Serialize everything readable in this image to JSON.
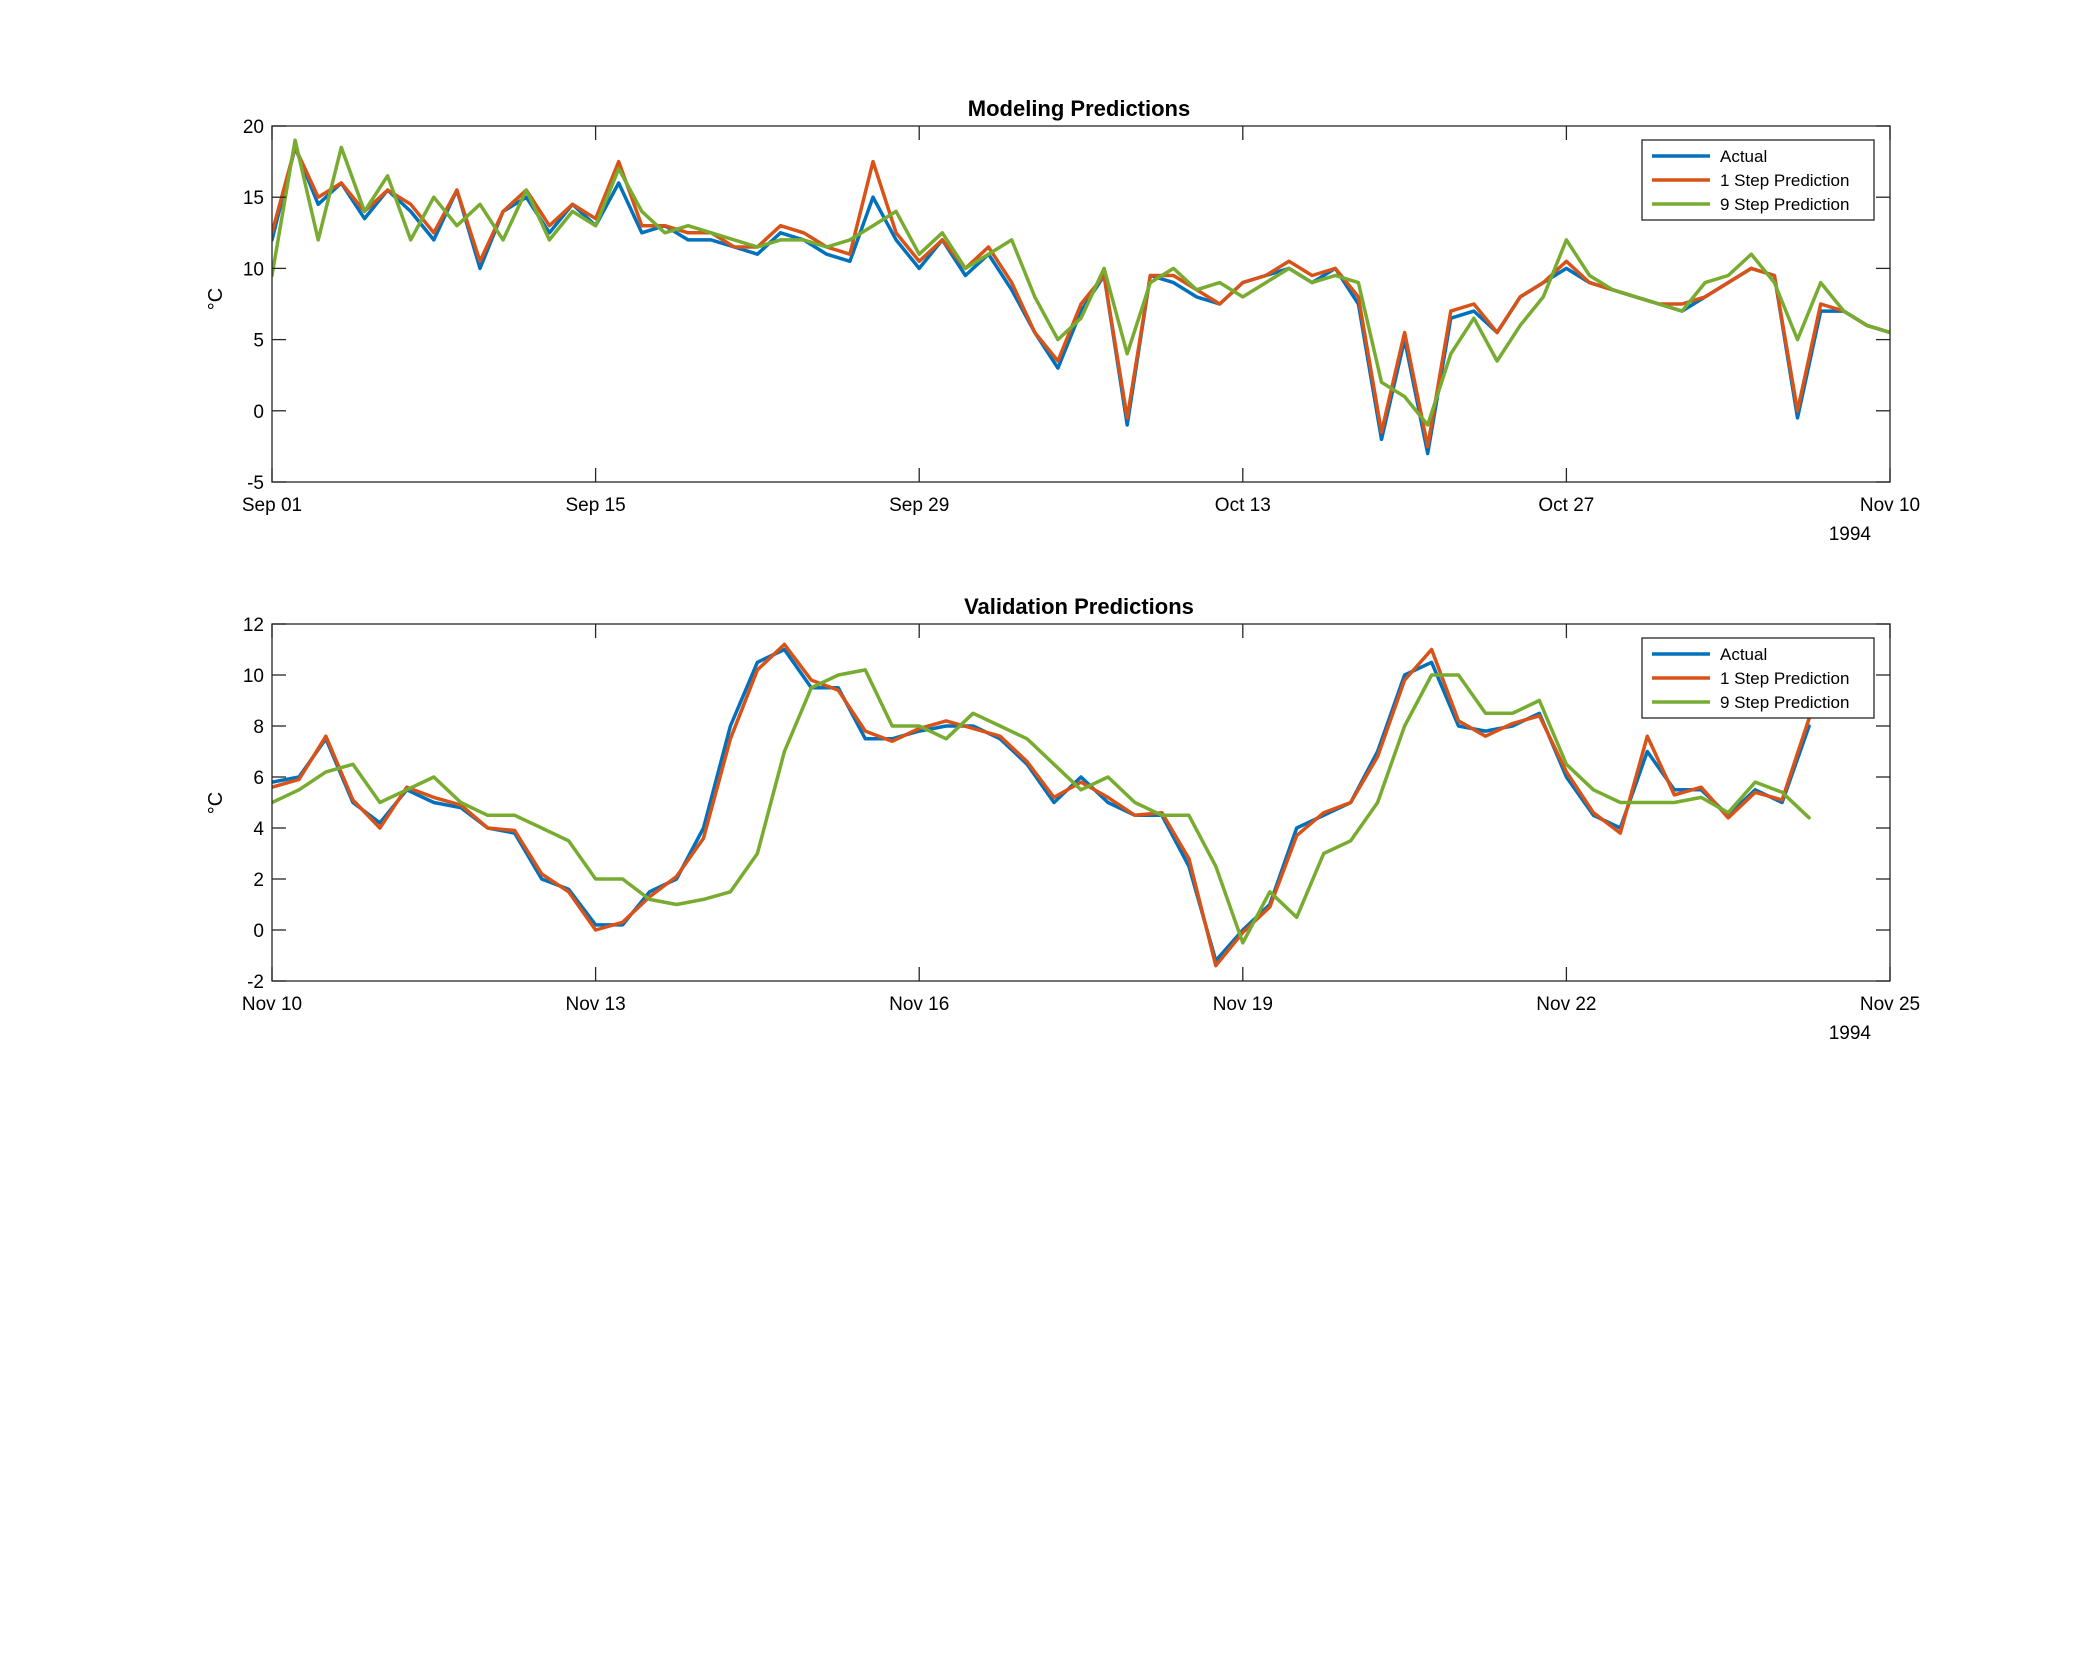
{
  "figure": {
    "colors": {
      "actual": "#0072BD",
      "one_step": "#D95319",
      "nine_step": "#77AC30"
    }
  },
  "chart_data": [
    {
      "type": "line",
      "title": "Modeling Predictions",
      "ylabel": "°C",
      "xlabel": "",
      "year_label": "1994",
      "xlim": [
        "1994-09-01",
        "1994-11-10"
      ],
      "ylim": [
        -5,
        20
      ],
      "x_ticks": [
        "Sep 01",
        "Sep 15",
        "Sep 29",
        "Oct 13",
        "Oct 27",
        "Nov 10"
      ],
      "y_ticks": [
        "-5",
        "0",
        "5",
        "10",
        "15",
        "20"
      ],
      "grid": false,
      "legend": {
        "position": "top-right",
        "entries": [
          "Actual",
          "1 Step Prediction",
          "9 Step Prediction"
        ]
      },
      "series": [
        {
          "name": "Actual",
          "x": [
            "1994-09-01",
            "1994-09-02",
            "1994-09-03",
            "1994-09-04",
            "1994-09-05",
            "1994-09-06",
            "1994-09-07",
            "1994-09-08",
            "1994-09-09",
            "1994-09-10",
            "1994-09-11",
            "1994-09-12",
            "1994-09-13",
            "1994-09-14",
            "1994-09-15",
            "1994-09-16",
            "1994-09-17",
            "1994-09-18",
            "1994-09-19",
            "1994-09-20",
            "1994-09-21",
            "1994-09-22",
            "1994-09-23",
            "1994-09-24",
            "1994-09-25",
            "1994-09-26",
            "1994-09-27",
            "1994-09-28",
            "1994-09-29",
            "1994-09-30",
            "1994-10-01",
            "1994-10-02",
            "1994-10-03",
            "1994-10-04",
            "1994-10-05",
            "1994-10-06",
            "1994-10-07",
            "1994-10-08",
            "1994-10-09",
            "1994-10-10",
            "1994-10-11",
            "1994-10-12",
            "1994-10-13",
            "1994-10-14",
            "1994-10-15",
            "1994-10-16",
            "1994-10-17",
            "1994-10-18",
            "1994-10-19",
            "1994-10-20",
            "1994-10-21",
            "1994-10-22",
            "1994-10-23",
            "1994-10-24",
            "1994-10-25",
            "1994-10-26",
            "1994-10-27",
            "1994-10-28",
            "1994-10-29",
            "1994-10-30",
            "1994-10-31",
            "1994-11-01",
            "1994-11-02",
            "1994-11-03",
            "1994-11-04",
            "1994-11-05",
            "1994-11-06",
            "1994-11-07",
            "1994-11-08",
            "1994-11-09",
            "1994-11-10"
          ],
          "values": [
            12,
            18.5,
            14.5,
            16,
            13.5,
            15.5,
            14,
            12,
            15.5,
            10,
            14,
            15,
            12.5,
            14.5,
            13,
            16,
            12.5,
            13,
            12,
            12,
            11.5,
            11,
            12.5,
            12,
            11,
            10.5,
            15,
            12,
            10,
            12,
            9.5,
            11,
            8.5,
            5.5,
            3,
            7,
            9.5,
            -1,
            9.5,
            9,
            8,
            7.5,
            9,
            9.5,
            10,
            9,
            10,
            7.5,
            -2,
            5,
            -3,
            6.5,
            7,
            5.5,
            8,
            9,
            10,
            9,
            8.5,
            8,
            7.5,
            7,
            8,
            9,
            10,
            9.5,
            -0.5,
            7,
            7,
            6,
            5.5
          ]
        },
        {
          "name": "1 Step Prediction",
          "x": [
            "1994-09-01",
            "1994-09-02",
            "1994-09-03",
            "1994-09-04",
            "1994-09-05",
            "1994-09-06",
            "1994-09-07",
            "1994-09-08",
            "1994-09-09",
            "1994-09-10",
            "1994-09-11",
            "1994-09-12",
            "1994-09-13",
            "1994-09-14",
            "1994-09-15",
            "1994-09-16",
            "1994-09-17",
            "1994-09-18",
            "1994-09-19",
            "1994-09-20",
            "1994-09-21",
            "1994-09-22",
            "1994-09-23",
            "1994-09-24",
            "1994-09-25",
            "1994-09-26",
            "1994-09-27",
            "1994-09-28",
            "1994-09-29",
            "1994-09-30",
            "1994-10-01",
            "1994-10-02",
            "1994-10-03",
            "1994-10-04",
            "1994-10-05",
            "1994-10-06",
            "1994-10-07",
            "1994-10-08",
            "1994-10-09",
            "1994-10-10",
            "1994-10-11",
            "1994-10-12",
            "1994-10-13",
            "1994-10-14",
            "1994-10-15",
            "1994-10-16",
            "1994-10-17",
            "1994-10-18",
            "1994-10-19",
            "1994-10-20",
            "1994-10-21",
            "1994-10-22",
            "1994-10-23",
            "1994-10-24",
            "1994-10-25",
            "1994-10-26",
            "1994-10-27",
            "1994-10-28",
            "1994-10-29",
            "1994-10-30",
            "1994-10-31",
            "1994-11-01",
            "1994-11-02",
            "1994-11-03",
            "1994-11-04",
            "1994-11-05",
            "1994-11-06",
            "1994-11-07",
            "1994-11-08",
            "1994-11-09",
            "1994-11-10"
          ],
          "values": [
            12.5,
            18.5,
            15,
            16,
            14,
            15.5,
            14.5,
            12.5,
            15.5,
            10.5,
            14,
            15.5,
            13,
            14.5,
            13.5,
            17.5,
            13,
            13,
            12.5,
            12.5,
            11.5,
            11.5,
            13,
            12.5,
            11.5,
            11,
            17.5,
            12.5,
            10.5,
            12,
            10,
            11.5,
            9,
            5.5,
            3.5,
            7.5,
            9.5,
            -0.5,
            9.5,
            9.5,
            8.5,
            7.5,
            9,
            9.5,
            10.5,
            9.5,
            10,
            8,
            -1.5,
            5.5,
            -2.5,
            7,
            7.5,
            5.5,
            8,
            9,
            10.5,
            9,
            8.5,
            8,
            7.5,
            7.5,
            8,
            9,
            10,
            9.5,
            0,
            7.5,
            7,
            6,
            5.5
          ]
        },
        {
          "name": "9 Step Prediction",
          "x": [
            "1994-09-01",
            "1994-09-02",
            "1994-09-03",
            "1994-09-04",
            "1994-09-05",
            "1994-09-06",
            "1994-09-07",
            "1994-09-08",
            "1994-09-09",
            "1994-09-10",
            "1994-09-11",
            "1994-09-12",
            "1994-09-13",
            "1994-09-14",
            "1994-09-15",
            "1994-09-16",
            "1994-09-17",
            "1994-09-18",
            "1994-09-19",
            "1994-09-20",
            "1994-09-21",
            "1994-09-22",
            "1994-09-23",
            "1994-09-24",
            "1994-09-25",
            "1994-09-26",
            "1994-09-27",
            "1994-09-28",
            "1994-09-29",
            "1994-09-30",
            "1994-10-01",
            "1994-10-02",
            "1994-10-03",
            "1994-10-04",
            "1994-10-05",
            "1994-10-06",
            "1994-10-07",
            "1994-10-08",
            "1994-10-09",
            "1994-10-10",
            "1994-10-11",
            "1994-10-12",
            "1994-10-13",
            "1994-10-14",
            "1994-10-15",
            "1994-10-16",
            "1994-10-17",
            "1994-10-18",
            "1994-10-19",
            "1994-10-20",
            "1994-10-21",
            "1994-10-22",
            "1994-10-23",
            "1994-10-24",
            "1994-10-25",
            "1994-10-26",
            "1994-10-27",
            "1994-10-28",
            "1994-10-29",
            "1994-10-30",
            "1994-10-31",
            "1994-11-01",
            "1994-11-02",
            "1994-11-03",
            "1994-11-04",
            "1994-11-05",
            "1994-11-06",
            "1994-11-07",
            "1994-11-08",
            "1994-11-09",
            "1994-11-10"
          ],
          "values": [
            9.5,
            19,
            12,
            18.5,
            14,
            16.5,
            12,
            15,
            13,
            14.5,
            12,
            15.5,
            12,
            14,
            13,
            17,
            14,
            12.5,
            13,
            12.5,
            12,
            11.5,
            12,
            12,
            11.5,
            12,
            13,
            14,
            11,
            12.5,
            10,
            11,
            12,
            8,
            5,
            6.5,
            10,
            4,
            9,
            10,
            8.5,
            9,
            8,
            9,
            10,
            9,
            9.5,
            9,
            2,
            1,
            -1,
            4,
            6.5,
            3.5,
            6,
            8,
            12,
            9.5,
            8.5,
            8,
            7.5,
            7,
            9,
            9.5,
            11,
            9,
            5,
            9,
            7,
            6,
            5.5
          ]
        }
      ]
    },
    {
      "type": "line",
      "title": "Validation Predictions",
      "ylabel": "°C",
      "xlabel": "",
      "year_label": "1994",
      "xlim": [
        "1994-11-10",
        "1994-11-25"
      ],
      "ylim": [
        -2,
        12
      ],
      "x_ticks": [
        "Nov 10",
        "Nov 13",
        "Nov 16",
        "Nov 19",
        "Nov 22",
        "Nov 25"
      ],
      "y_ticks": [
        "-2",
        "0",
        "2",
        "4",
        "6",
        "8",
        "10",
        "12"
      ],
      "grid": false,
      "legend": {
        "position": "top-right",
        "entries": [
          "Actual",
          "1 Step Prediction",
          "9 Step Prediction"
        ]
      },
      "series": [
        {
          "name": "Actual",
          "x": [
            "1994-11-10 00:00",
            "1994-11-10 06:00",
            "1994-11-10 12:00",
            "1994-11-10 18:00",
            "1994-11-11 00:00",
            "1994-11-11 06:00",
            "1994-11-11 12:00",
            "1994-11-11 18:00",
            "1994-11-12 00:00",
            "1994-11-12 06:00",
            "1994-11-12 12:00",
            "1994-11-12 18:00",
            "1994-11-13 00:00",
            "1994-11-13 06:00",
            "1994-11-13 12:00",
            "1994-11-13 18:00",
            "1994-11-14 00:00",
            "1994-11-14 06:00",
            "1994-11-14 12:00",
            "1994-11-14 18:00",
            "1994-11-15 00:00",
            "1994-11-15 06:00",
            "1994-11-15 12:00",
            "1994-11-15 18:00",
            "1994-11-16 00:00",
            "1994-11-16 06:00",
            "1994-11-16 12:00",
            "1994-11-16 18:00",
            "1994-11-17 00:00",
            "1994-11-17 06:00",
            "1994-11-17 12:00",
            "1994-11-17 18:00",
            "1994-11-18 00:00",
            "1994-11-18 06:00",
            "1994-11-18 12:00",
            "1994-11-18 18:00",
            "1994-11-19 00:00",
            "1994-11-19 06:00",
            "1994-11-19 12:00",
            "1994-11-19 18:00",
            "1994-11-20 00:00",
            "1994-11-20 06:00",
            "1994-11-20 12:00",
            "1994-11-20 18:00",
            "1994-11-21 00:00",
            "1994-11-21 06:00",
            "1994-11-21 12:00",
            "1994-11-21 18:00",
            "1994-11-22 00:00",
            "1994-11-22 06:00",
            "1994-11-22 12:00",
            "1994-11-22 18:00",
            "1994-11-23 00:00",
            "1994-11-23 06:00",
            "1994-11-23 12:00",
            "1994-11-23 18:00",
            "1994-11-24 00:00",
            "1994-11-24 06:00"
          ],
          "values": [
            5.8,
            6,
            7.5,
            5,
            4.2,
            5.5,
            5,
            4.8,
            4,
            3.8,
            2,
            1.6,
            0.2,
            0.2,
            1.5,
            2,
            4,
            8,
            10.5,
            11,
            9.5,
            9.5,
            7.5,
            7.5,
            7.8,
            8,
            8,
            7.5,
            6.5,
            5,
            6,
            5,
            4.5,
            4.5,
            2.5,
            -1.2,
            0,
            1,
            4,
            4.5,
            5,
            7,
            10,
            10.5,
            8,
            7.8,
            8,
            8.5,
            6,
            4.5,
            4,
            7,
            5.5,
            5.5,
            4.5,
            5.5,
            5,
            8
          ]
        },
        {
          "name": "1 Step Prediction",
          "x": [
            "1994-11-10 00:00",
            "1994-11-10 06:00",
            "1994-11-10 12:00",
            "1994-11-10 18:00",
            "1994-11-11 00:00",
            "1994-11-11 06:00",
            "1994-11-11 12:00",
            "1994-11-11 18:00",
            "1994-11-12 00:00",
            "1994-11-12 06:00",
            "1994-11-12 12:00",
            "1994-11-12 18:00",
            "1994-11-13 00:00",
            "1994-11-13 06:00",
            "1994-11-13 12:00",
            "1994-11-13 18:00",
            "1994-11-14 00:00",
            "1994-11-14 06:00",
            "1994-11-14 12:00",
            "1994-11-14 18:00",
            "1994-11-15 00:00",
            "1994-11-15 06:00",
            "1994-11-15 12:00",
            "1994-11-15 18:00",
            "1994-11-16 00:00",
            "1994-11-16 06:00",
            "1994-11-16 12:00",
            "1994-11-16 18:00",
            "1994-11-17 00:00",
            "1994-11-17 06:00",
            "1994-11-17 12:00",
            "1994-11-17 18:00",
            "1994-11-18 00:00",
            "1994-11-18 06:00",
            "1994-11-18 12:00",
            "1994-11-18 18:00",
            "1994-11-19 00:00",
            "1994-11-19 06:00",
            "1994-11-19 12:00",
            "1994-11-19 18:00",
            "1994-11-20 00:00",
            "1994-11-20 06:00",
            "1994-11-20 12:00",
            "1994-11-20 18:00",
            "1994-11-21 00:00",
            "1994-11-21 06:00",
            "1994-11-21 12:00",
            "1994-11-21 18:00",
            "1994-11-22 00:00",
            "1994-11-22 06:00",
            "1994-11-22 12:00",
            "1994-11-22 18:00",
            "1994-11-23 00:00",
            "1994-11-23 06:00",
            "1994-11-23 12:00",
            "1994-11-23 18:00",
            "1994-11-24 00:00",
            "1994-11-24 06:00"
          ],
          "values": [
            5.6,
            5.9,
            7.6,
            5.1,
            4,
            5.6,
            5.2,
            4.9,
            4,
            3.9,
            2.2,
            1.5,
            0,
            0.3,
            1.3,
            2.1,
            3.6,
            7.5,
            10.2,
            11.2,
            9.8,
            9.4,
            7.8,
            7.4,
            7.9,
            8.2,
            7.9,
            7.6,
            6.6,
            5.2,
            5.8,
            5.2,
            4.5,
            4.6,
            2.8,
            -1.4,
            -0.1,
            0.9,
            3.7,
            4.6,
            5,
            6.8,
            9.8,
            11,
            8.2,
            7.6,
            8.1,
            8.4,
            6.2,
            4.6,
            3.8,
            7.6,
            5.3,
            5.6,
            4.4,
            5.4,
            5.1,
            8.3
          ]
        },
        {
          "name": "9 Step Prediction",
          "x": [
            "1994-11-10 00:00",
            "1994-11-10 06:00",
            "1994-11-10 12:00",
            "1994-11-10 18:00",
            "1994-11-11 00:00",
            "1994-11-11 06:00",
            "1994-11-11 12:00",
            "1994-11-11 18:00",
            "1994-11-12 00:00",
            "1994-11-12 06:00",
            "1994-11-12 12:00",
            "1994-11-12 18:00",
            "1994-11-13 00:00",
            "1994-11-13 06:00",
            "1994-11-13 12:00",
            "1994-11-13 18:00",
            "1994-11-14 00:00",
            "1994-11-14 06:00",
            "1994-11-14 12:00",
            "1994-11-14 18:00",
            "1994-11-15 00:00",
            "1994-11-15 06:00",
            "1994-11-15 12:00",
            "1994-11-15 18:00",
            "1994-11-16 00:00",
            "1994-11-16 06:00",
            "1994-11-16 12:00",
            "1994-11-16 18:00",
            "1994-11-17 00:00",
            "1994-11-17 06:00",
            "1994-11-17 12:00",
            "1994-11-17 18:00",
            "1994-11-18 00:00",
            "1994-11-18 06:00",
            "1994-11-18 12:00",
            "1994-11-18 18:00",
            "1994-11-19 00:00",
            "1994-11-19 06:00",
            "1994-11-19 12:00",
            "1994-11-19 18:00",
            "1994-11-20 00:00",
            "1994-11-20 06:00",
            "1994-11-20 12:00",
            "1994-11-20 18:00",
            "1994-11-21 00:00",
            "1994-11-21 06:00",
            "1994-11-21 12:00",
            "1994-11-21 18:00",
            "1994-11-22 00:00",
            "1994-11-22 06:00",
            "1994-11-22 12:00",
            "1994-11-22 18:00",
            "1994-11-23 00:00",
            "1994-11-23 06:00",
            "1994-11-23 12:00",
            "1994-11-23 18:00",
            "1994-11-24 00:00",
            "1994-11-24 06:00"
          ],
          "values": [
            5,
            5.5,
            6.2,
            6.5,
            5,
            5.5,
            6,
            5,
            4.5,
            4.5,
            4,
            3.5,
            2,
            2,
            1.2,
            1,
            1.2,
            1.5,
            3,
            7,
            9.5,
            10,
            10.2,
            8,
            8,
            7.5,
            8.5,
            8,
            7.5,
            6.5,
            5.5,
            6,
            5,
            4.5,
            4.5,
            2.5,
            -0.5,
            1.5,
            0.5,
            3,
            3.5,
            5,
            8,
            10,
            10,
            8.5,
            8.5,
            9,
            6.5,
            5.5,
            5,
            5,
            5,
            5.2,
            4.6,
            5.8,
            5.4,
            4.4
          ]
        }
      ]
    }
  ]
}
